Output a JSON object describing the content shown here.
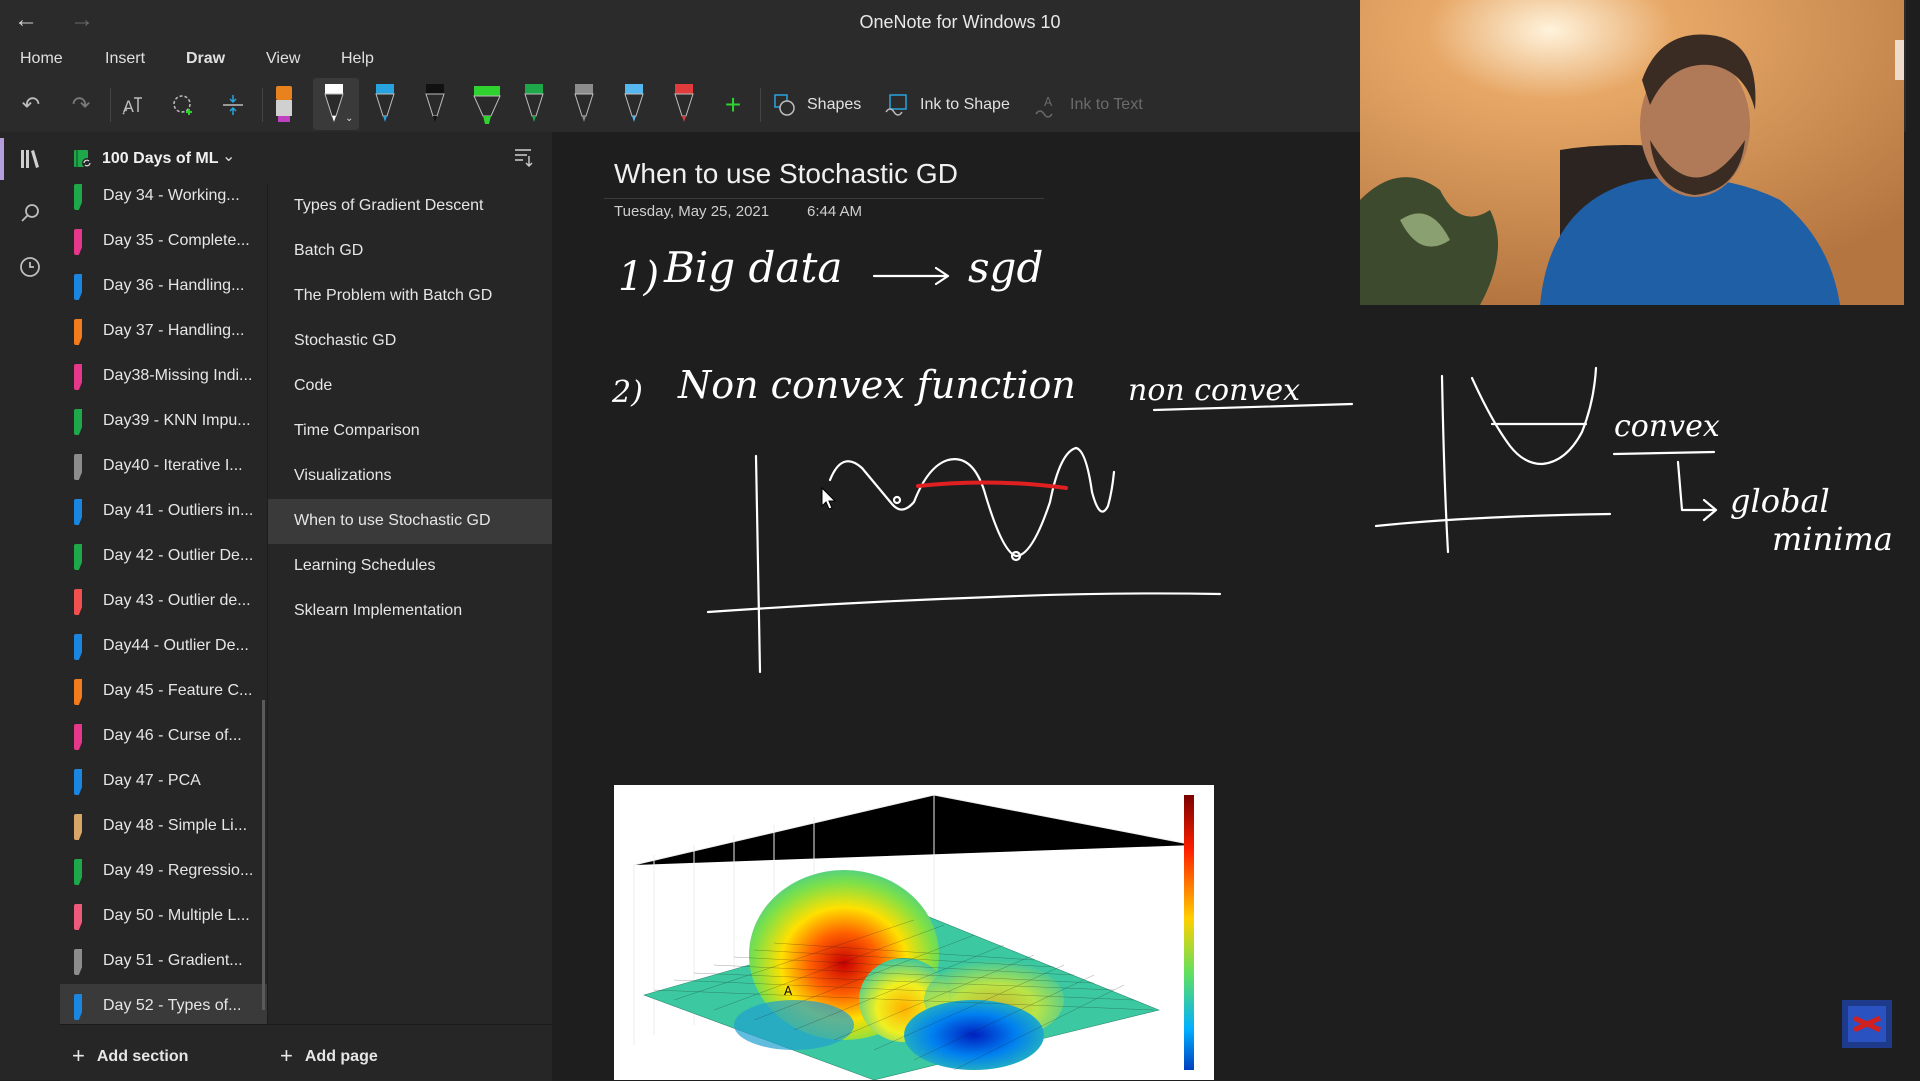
{
  "app": {
    "title": "OneNote for Windows 10"
  },
  "titlebar": {
    "back_icon": "arrow-left-icon",
    "forward_icon": "arrow-right-icon"
  },
  "ribbon": {
    "tabs": [
      {
        "label": "Home"
      },
      {
        "label": "Insert"
      },
      {
        "label": "Draw",
        "active": true
      },
      {
        "label": "View"
      },
      {
        "label": "Help"
      }
    ]
  },
  "toolbar": {
    "undo_icon": "undo-icon",
    "redo_icon": "redo-icon",
    "shapes_label": "Shapes",
    "ink_to_shape_label": "Ink to Shape",
    "ink_to_text_label": "Ink to Text",
    "pens": [
      {
        "name": "pen-orange",
        "color": "#e8821e"
      },
      {
        "name": "pen-white",
        "color": "#ffffff"
      },
      {
        "name": "pen-blue",
        "color": "#29a3e0"
      },
      {
        "name": "pen-black",
        "color": "#222222"
      },
      {
        "name": "highlighter-green",
        "color": "#2fd32f"
      },
      {
        "name": "pen-green",
        "color": "#1ea84a"
      },
      {
        "name": "pen-gray",
        "color": "#8c8c8c"
      },
      {
        "name": "pen-lightblue",
        "color": "#56b8f0"
      },
      {
        "name": "pen-red",
        "color": "#e23b3b"
      }
    ]
  },
  "notebook": {
    "name": "100 Days of ML"
  },
  "sections": [
    {
      "label": "Day 34 - Working...",
      "color": "#1ea84a"
    },
    {
      "label": "Day 35 - Complete...",
      "color": "#e6388a"
    },
    {
      "label": "Day 36 - Handling...",
      "color": "#1a86e0"
    },
    {
      "label": "Day 37 - Handling...",
      "color": "#f07c1e"
    },
    {
      "label": "Day38-Missing Indi...",
      "color": "#e6388a"
    },
    {
      "label": "Day39 - KNN Impu...",
      "color": "#1ea84a"
    },
    {
      "label": "Day40 - Iterative I...",
      "color": "#8c8c8c"
    },
    {
      "label": "Day 41 - Outliers in...",
      "color": "#1a86e0"
    },
    {
      "label": "Day 42 - Outlier De...",
      "color": "#1ea84a"
    },
    {
      "label": "Day 43 - Outlier de...",
      "color": "#f05050"
    },
    {
      "label": "Day44 - Outlier De...",
      "color": "#1a86e0"
    },
    {
      "label": "Day 45 - Feature C...",
      "color": "#f07c1e"
    },
    {
      "label": "Day 46 - Curse of...",
      "color": "#e6388a"
    },
    {
      "label": "Day 47 - PCA",
      "color": "#1a86e0"
    },
    {
      "label": "Day 48 - Simple Li...",
      "color": "#d9a66a"
    },
    {
      "label": "Day 49 - Regressio...",
      "color": "#1ea84a"
    },
    {
      "label": "Day 50 - Multiple L...",
      "color": "#f05a7a"
    },
    {
      "label": "Day 51 - Gradient...",
      "color": "#8c8c8c"
    },
    {
      "label": "Day 52 - Types of...",
      "color": "#1a86e0",
      "selected": true
    }
  ],
  "pages": [
    {
      "label": "Types of Gradient Descent"
    },
    {
      "label": "Batch GD"
    },
    {
      "label": "The Problem with Batch GD"
    },
    {
      "label": "Stochastic GD"
    },
    {
      "label": "Code"
    },
    {
      "label": "Time Comparison"
    },
    {
      "label": "Visualizations"
    },
    {
      "label": "When to use Stochastic GD",
      "selected": true
    },
    {
      "label": "Learning Schedules"
    },
    {
      "label": "Sklearn Implementation"
    }
  ],
  "add_section_label": "Add section",
  "add_page_label": "Add page",
  "page": {
    "title": "When to use Stochastic GD",
    "date": "Tuesday, May 25, 2021",
    "time": "6:44 AM"
  },
  "ink_text": {
    "line1_number": "1)",
    "line1_text": "Big data",
    "line1_result": "sgd",
    "line2_number": "2)",
    "line2_text": "Non convex function",
    "non_convex_label": "non convex",
    "convex_label": "convex",
    "global_label": "global",
    "minima_label": "minima"
  },
  "colors": {
    "accent": "#b39ddb",
    "red_ink": "#e02020",
    "ink": "#ffffff"
  }
}
